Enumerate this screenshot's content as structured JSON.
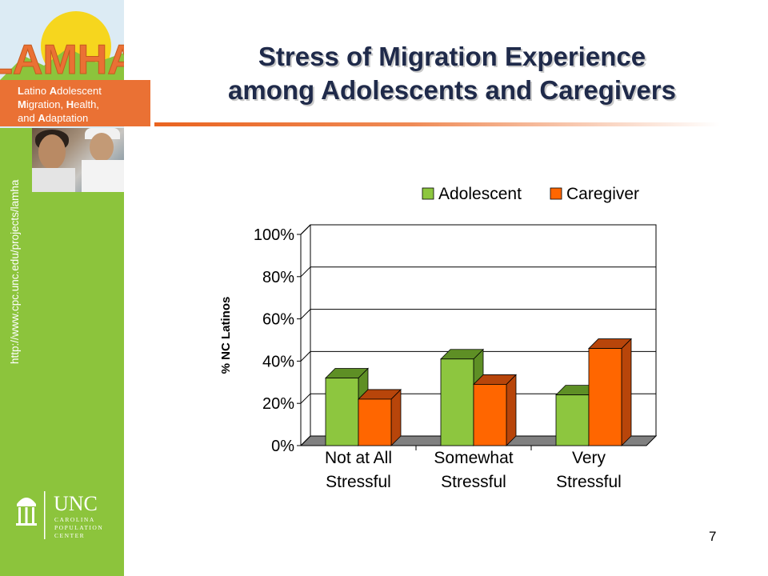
{
  "slide": {
    "title_line1": "Stress of Migration Experience",
    "title_line2": "among Adolescents and Caregivers",
    "page_number": "7"
  },
  "logo": {
    "wordmark": "LAMHA",
    "lines": [
      {
        "cap": "L",
        "rest": "atino ",
        "cap2": "A",
        "rest2": "dolescent"
      },
      {
        "cap": "M",
        "rest": "igration, ",
        "cap2": "H",
        "rest2": "ealth,"
      },
      {
        "cap": "",
        "rest": "and ",
        "cap2": "A",
        "rest2": "daptation"
      }
    ]
  },
  "sidebar": {
    "url": "http://www.cpc.unc.edu/projects/lamha",
    "org_logo": {
      "name": "UNC",
      "line1": "CAROLINA",
      "line2": "POPULATION",
      "line3": "CENTER"
    }
  },
  "colors": {
    "adolescent": "#8dc63f",
    "adolescent_side": "#5e8f25",
    "caregiver": "#ff6600",
    "caregiver_side": "#b8450a",
    "title": "#1f2a4a",
    "sidebar": "#8cc43c",
    "banner": "#ea7134"
  },
  "chart_data": {
    "type": "bar",
    "categories": [
      [
        "Not at All",
        "Stressful"
      ],
      [
        "Somewhat",
        "Stressful"
      ],
      [
        "Very",
        "Stressful"
      ]
    ],
    "series": [
      {
        "name": "Adolescent",
        "values": [
          32,
          41,
          24
        ]
      },
      {
        "name": "Caregiver",
        "values": [
          22,
          29,
          46
        ]
      }
    ],
    "ylabel": "% NC Latinos",
    "yticks": [
      "0%",
      "20%",
      "40%",
      "60%",
      "80%",
      "100%"
    ],
    "ylim": [
      0,
      100
    ],
    "grid": true,
    "legend": "top-right",
    "style": "3d"
  }
}
